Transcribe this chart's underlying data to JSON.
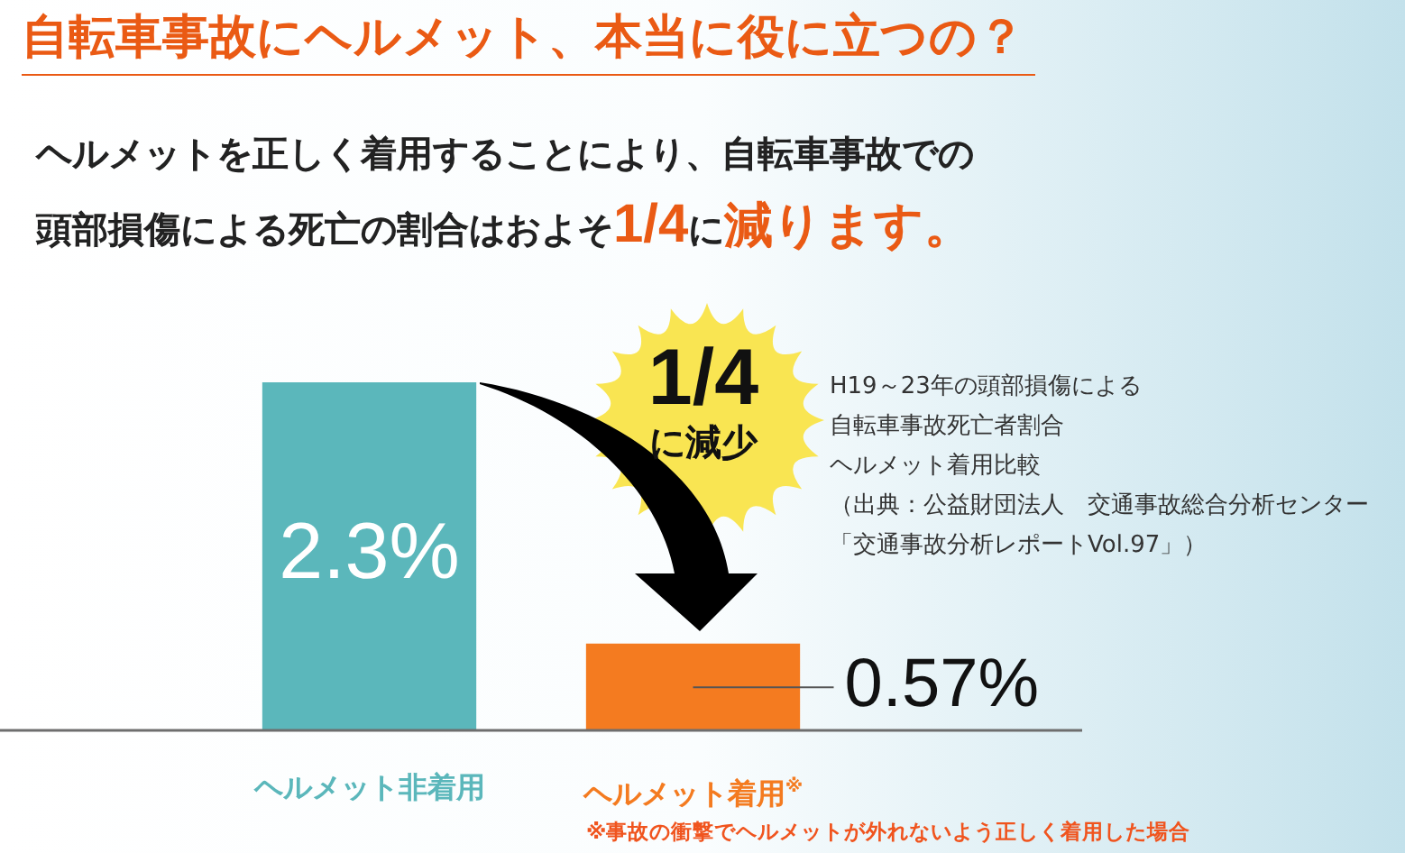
{
  "chart_data": {
    "type": "bar",
    "title": "自転車事故にヘルメット、本当に役に立つの？",
    "subtitle": "ヘルメットを正しく着用することにより、自転車事故での頭部損傷による死亡の割合はおよそ1/4に減ります。",
    "categories": [
      "ヘルメット非着用",
      "ヘルメット着用$^{※}$"
    ],
    "values": [
      2.3,
      0.57
    ],
    "colors": [
      "#5bb7bb",
      "#f47b20"
    ],
    "value_labels": [
      "2.3%",
      "0.57%"
    ],
    "annotations": [
      "1/4に減少",
      "H19～23年の頭部損傷による",
      "自転車事故死亡者割合",
      "ヘルメット着用比較",
      "（出典：公益財団法人　交通事故総合分析センター",
      "「交通事故分析レポートVol.97」）",
      "※事故の衝撃でヘルメットが外れないよう正しく着用した場合"
    ]
  }
}
